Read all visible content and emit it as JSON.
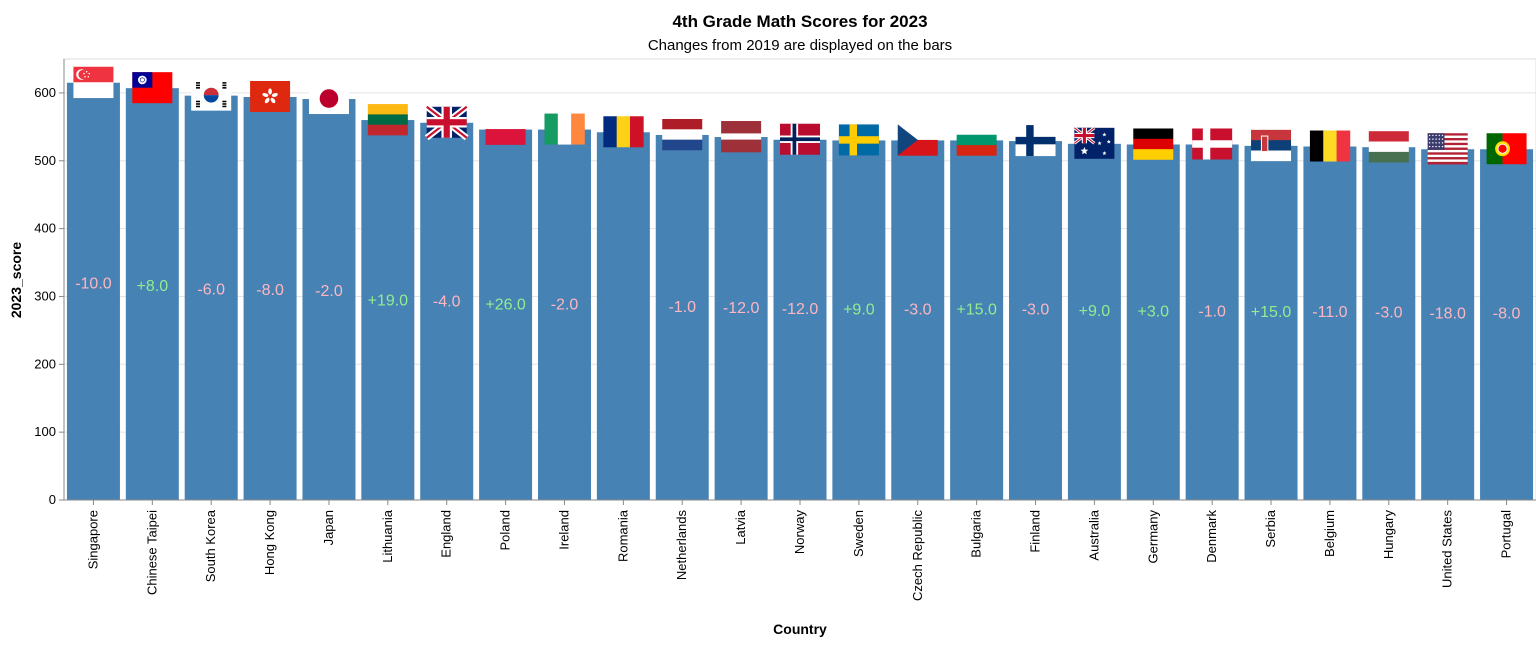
{
  "chart_data": {
    "type": "bar",
    "title": "4th Grade Math Scores for 2023",
    "subtitle": "Changes from 2019 are displayed on the bars",
    "xlabel": "Country",
    "ylabel": "2023_score",
    "ylim": [
      0,
      650
    ],
    "yticks": [
      0,
      100,
      200,
      300,
      400,
      500,
      600
    ],
    "bar_color": "#4682b4",
    "positive_color": "#90ee90",
    "negative_color": "#ffb6c1",
    "grid": true,
    "categories": [
      "Singapore",
      "Chinese Taipei",
      "South Korea",
      "Hong Kong",
      "Japan",
      "Lithuania",
      "England",
      "Poland",
      "Ireland",
      "Romania",
      "Netherlands",
      "Latvia",
      "Norway",
      "Sweden",
      "Czech Republic",
      "Bulgaria",
      "Finland",
      "Australia",
      "Germany",
      "Denmark",
      "Serbia",
      "Belgium",
      "Hungary",
      "United States",
      "Portugal"
    ],
    "values": [
      615,
      607,
      596,
      594,
      591,
      560,
      556,
      546,
      546,
      542,
      538,
      535,
      531,
      530,
      530,
      530,
      529,
      525,
      524,
      524,
      522,
      521,
      520,
      517,
      517
    ],
    "changes": [
      "-10.0",
      "+8.0",
      "-6.0",
      "-8.0",
      "-2.0",
      "+19.0",
      "-4.0",
      "+26.0",
      "-2.0",
      "",
      "-1.0",
      "-12.0",
      "-12.0",
      "+9.0",
      "-3.0",
      "+15.0",
      "-3.0",
      "+9.0",
      "+3.0",
      "-1.0",
      "+15.0",
      "-11.0",
      "-3.0",
      "-18.0",
      "-8.0"
    ],
    "flags": [
      "singapore-flag",
      "chinese-taipei-flag",
      "south-korea-flag",
      "hong-kong-flag",
      "japan-flag",
      "lithuania-flag",
      "england-flag",
      "poland-flag",
      "ireland-flag",
      "romania-flag",
      "netherlands-flag",
      "latvia-flag",
      "norway-flag",
      "sweden-flag",
      "czech-republic-flag",
      "bulgaria-flag",
      "finland-flag",
      "australia-flag",
      "germany-flag",
      "denmark-flag",
      "serbia-flag",
      "belgium-flag",
      "hungary-flag",
      "united-states-flag",
      "portugal-flag"
    ]
  }
}
